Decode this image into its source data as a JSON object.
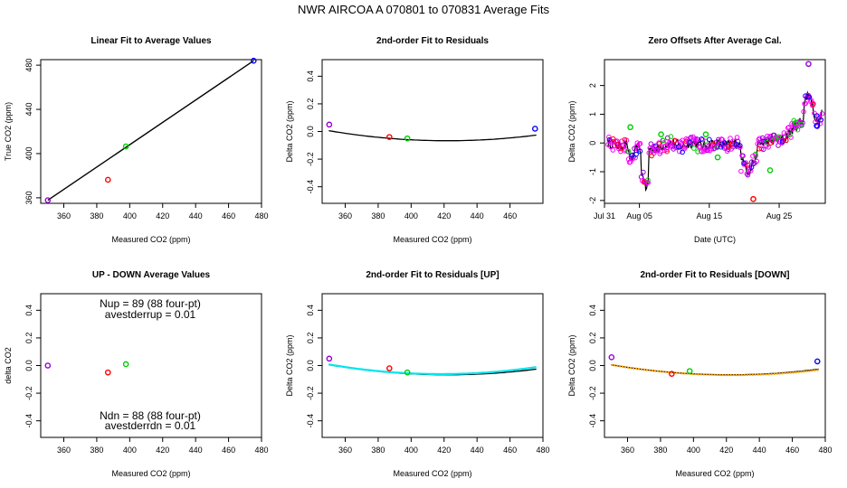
{
  "page_title": "NWR   AIRCOA A   070801 to 070831   Average Fits",
  "colors": {
    "purple": "#9400d3",
    "red": "#ff0000",
    "green": "#00cc00",
    "blue": "#0000ff",
    "magenta": "#ff00ff",
    "black": "#000000",
    "cyan": "#00e5ee",
    "orange": "#ffa500"
  },
  "chart_data": [
    {
      "id": "p1",
      "type": "scatter",
      "title": "Linear Fit to Average Values",
      "xlabel": "Measured CO2 (ppm)",
      "ylabel": "True CO2 (ppm)",
      "xlim": [
        346,
        480
      ],
      "ylim": [
        355,
        485
      ],
      "xticks": [
        360,
        380,
        400,
        420,
        440,
        460,
        480
      ],
      "yticks": [
        360,
        400,
        440,
        480
      ],
      "ytick_rotated": true,
      "points": [
        {
          "x": 350.3,
          "y": 357.8,
          "color": "purple"
        },
        {
          "x": 386.8,
          "y": 376.3,
          "color": "red"
        },
        {
          "x": 397.7,
          "y": 406.5,
          "color": "green"
        },
        {
          "x": 475.2,
          "y": 484.0,
          "color": "blue"
        }
      ],
      "lines": [
        {
          "x": [
            350.3,
            475.2
          ],
          "y": [
            357.8,
            484.0
          ],
          "color": "black"
        }
      ]
    },
    {
      "id": "p2",
      "type": "scatter",
      "title": "2nd-order Fit to Residuals",
      "xlabel": "Measured CO2 (ppm)",
      "ylabel": "Delta CO2 (ppm)",
      "xlim": [
        346,
        480
      ],
      "ylim": [
        -0.52,
        0.52
      ],
      "xticks": [
        360,
        380,
        400,
        420,
        440,
        460
      ],
      "yticks": [
        -0.4,
        -0.2,
        0.0,
        0.2,
        0.4
      ],
      "ytick_labels": [
        "-0.4",
        "-0.2",
        "0.0",
        "0.2",
        "0.4"
      ],
      "points": [
        {
          "x": 350.3,
          "y": 0.05,
          "color": "purple"
        },
        {
          "x": 386.8,
          "y": -0.04,
          "color": "red"
        },
        {
          "x": 397.7,
          "y": -0.05,
          "color": "green"
        },
        {
          "x": 475.2,
          "y": 0.02,
          "color": "blue"
        }
      ],
      "curves": [
        {
          "a": 1.41e-05,
          "vertex": 422,
          "k": -0.067,
          "from": 350,
          "to": 476,
          "color": "black"
        }
      ]
    },
    {
      "id": "p3",
      "type": "scatter",
      "title": "Zero Offsets After Average Cal.",
      "xlabel": "Date (UTC)",
      "ylabel": "Delta CO2 (ppm)",
      "xlim": [
        0,
        31.6
      ],
      "ylim": [
        -2.1,
        2.9
      ],
      "xticks": [
        0,
        5,
        15,
        25
      ],
      "xtick_labels": [
        "Jul 31",
        "Aug 05",
        "Aug 15",
        "Aug 25"
      ],
      "yticks": [
        -2,
        -1,
        0,
        1,
        2
      ],
      "ytick_labels": [
        "-2",
        "-1",
        "0",
        "1",
        "2"
      ],
      "trace_color": "magenta",
      "outliers": [
        {
          "x": 21.3,
          "y": -1.95,
          "color": "red"
        },
        {
          "x": 23.7,
          "y": -0.95,
          "color": "green"
        },
        {
          "x": 29.2,
          "y": 2.75,
          "color": "purple"
        },
        {
          "x": 27.4,
          "y": 0.7,
          "color": "green"
        },
        {
          "x": 30.4,
          "y": 0.6,
          "color": "blue"
        },
        {
          "x": 16.2,
          "y": -0.5,
          "color": "green"
        },
        {
          "x": 14.5,
          "y": 0.3,
          "color": "green"
        },
        {
          "x": 3.7,
          "y": 0.55,
          "color": "green"
        },
        {
          "x": 8.1,
          "y": 0.3,
          "color": "green"
        }
      ]
    },
    {
      "id": "p4",
      "type": "scatter",
      "title": "UP - DOWN Average Values",
      "xlabel": "Measured CO2 (ppm)",
      "ylabel": "delta CO2",
      "xlim": [
        346,
        480
      ],
      "ylim": [
        -0.52,
        0.52
      ],
      "xticks": [
        360,
        380,
        400,
        420,
        440,
        460,
        480
      ],
      "yticks": [
        -0.4,
        -0.2,
        0.0,
        0.2,
        0.4
      ],
      "ytick_labels": [
        "-0.4",
        "-0.2",
        "0.0",
        "0.2",
        "0.4"
      ],
      "points": [
        {
          "x": 350.3,
          "y": 0.0,
          "color": "purple"
        },
        {
          "x": 386.8,
          "y": -0.05,
          "color": "red"
        },
        {
          "x": 397.7,
          "y": 0.01,
          "color": "green"
        }
      ],
      "annotations": {
        "nup": "Nup = 89 (88 four-pt)",
        "avestderrup": "avestderrup =  0.01",
        "ndn": "Ndn = 88 (88 four-pt)",
        "avestderrdn": "avestderrdn =  0.01"
      }
    },
    {
      "id": "p5",
      "type": "scatter",
      "title": "2nd-order Fit to Residuals [UP]",
      "xlabel": "Measured CO2 (ppm)",
      "ylabel": "Delta CO2 (ppm)",
      "xlim": [
        346,
        480
      ],
      "ylim": [
        -0.52,
        0.52
      ],
      "xticks": [
        360,
        380,
        400,
        420,
        440,
        460,
        480
      ],
      "yticks": [
        -0.4,
        -0.2,
        0.0,
        0.2,
        0.4
      ],
      "ytick_labels": [
        "-0.4",
        "-0.2",
        "0.0",
        "0.2",
        "0.4"
      ],
      "points": [
        {
          "x": 350.3,
          "y": 0.05,
          "color": "purple"
        },
        {
          "x": 386.8,
          "y": -0.02,
          "color": "red"
        },
        {
          "x": 397.7,
          "y": -0.05,
          "color": "green"
        }
      ],
      "curves": [
        {
          "a": 1.41e-05,
          "vertex": 422,
          "k": -0.067,
          "from": 350,
          "to": 476,
          "color": "black"
        },
        {
          "a": 1.52e-05,
          "vertex": 418,
          "k": -0.062,
          "from": 350,
          "to": 476,
          "color": "cyan"
        }
      ]
    },
    {
      "id": "p6",
      "type": "scatter",
      "title": "2nd-order Fit to Residuals [DOWN]",
      "xlabel": "Measured CO2 (ppm)",
      "ylabel": "Delta CO2 (ppm)",
      "xlim": [
        346,
        480
      ],
      "ylim": [
        -0.52,
        0.52
      ],
      "xticks": [
        360,
        380,
        400,
        420,
        440,
        460,
        480
      ],
      "yticks": [
        -0.4,
        -0.2,
        0.0,
        0.2,
        0.4
      ],
      "ytick_labels": [
        "-0.4",
        "-0.2",
        "0.0",
        "0.2",
        "0.4"
      ],
      "points": [
        {
          "x": 350.3,
          "y": 0.06,
          "color": "purple"
        },
        {
          "x": 386.8,
          "y": -0.06,
          "color": "red"
        },
        {
          "x": 397.7,
          "y": -0.04,
          "color": "green"
        },
        {
          "x": 475.2,
          "y": 0.03,
          "color": "blue"
        }
      ],
      "curves": [
        {
          "a": 1.41e-05,
          "vertex": 422,
          "k": -0.067,
          "from": 350,
          "to": 476,
          "color": "black"
        },
        {
          "a": 1.35e-05,
          "vertex": 424,
          "k": -0.069,
          "from": 350,
          "to": 476,
          "color": "orange"
        }
      ]
    }
  ]
}
